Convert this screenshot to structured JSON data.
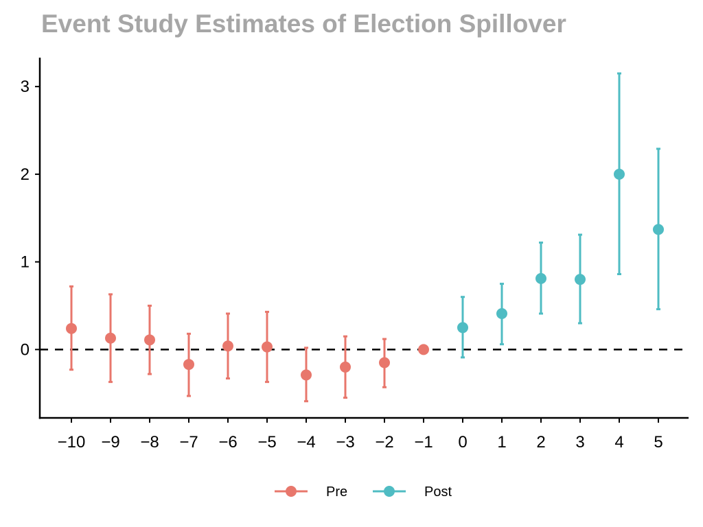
{
  "chart_data": {
    "type": "scatter",
    "title": "Event Study Estimates of Election Spillover",
    "xlabel": "",
    "ylabel": "",
    "ylim": [
      -0.78,
      3.33
    ],
    "y_ticks": [
      0,
      1,
      2,
      3
    ],
    "reference_line": {
      "y": 0,
      "style": "dashed"
    },
    "grid": false,
    "legend_position": "bottom",
    "series": [
      {
        "name": "Pre",
        "color": "#e8776c",
        "points": [
          {
            "x": "−10",
            "y": 0.24,
            "ci_low": -0.23,
            "ci_high": 0.72
          },
          {
            "x": "−9",
            "y": 0.13,
            "ci_low": -0.37,
            "ci_high": 0.63
          },
          {
            "x": "−8",
            "y": 0.11,
            "ci_low": -0.28,
            "ci_high": 0.5
          },
          {
            "x": "−7",
            "y": -0.17,
            "ci_low": -0.53,
            "ci_high": 0.18
          },
          {
            "x": "−6",
            "y": 0.04,
            "ci_low": -0.33,
            "ci_high": 0.41
          },
          {
            "x": "−5",
            "y": 0.03,
            "ci_low": -0.37,
            "ci_high": 0.43
          },
          {
            "x": "−4",
            "y": -0.29,
            "ci_low": -0.59,
            "ci_high": 0.02
          },
          {
            "x": "−3",
            "y": -0.2,
            "ci_low": -0.55,
            "ci_high": 0.15
          },
          {
            "x": "−2",
            "y": -0.15,
            "ci_low": -0.43,
            "ci_high": 0.12
          },
          {
            "x": "−1",
            "y": 0.0,
            "ci_low": 0.0,
            "ci_high": 0.0
          }
        ]
      },
      {
        "name": "Post",
        "color": "#4fbcc3",
        "points": [
          {
            "x": "0",
            "y": 0.25,
            "ci_low": -0.09,
            "ci_high": 0.6
          },
          {
            "x": "1",
            "y": 0.41,
            "ci_low": 0.06,
            "ci_high": 0.75
          },
          {
            "x": "2",
            "y": 0.81,
            "ci_low": 0.41,
            "ci_high": 1.22
          },
          {
            "x": "3",
            "y": 0.8,
            "ci_low": 0.3,
            "ci_high": 1.31
          },
          {
            "x": "4",
            "y": 2.0,
            "ci_low": 0.86,
            "ci_high": 3.15
          },
          {
            "x": "5",
            "y": 1.37,
            "ci_low": 0.46,
            "ci_high": 2.29
          }
        ]
      }
    ],
    "x_categories": [
      "−10",
      "−9",
      "−8",
      "−7",
      "−6",
      "−5",
      "−4",
      "−3",
      "−2",
      "−1",
      "0",
      "1",
      "2",
      "3",
      "4",
      "5"
    ]
  }
}
